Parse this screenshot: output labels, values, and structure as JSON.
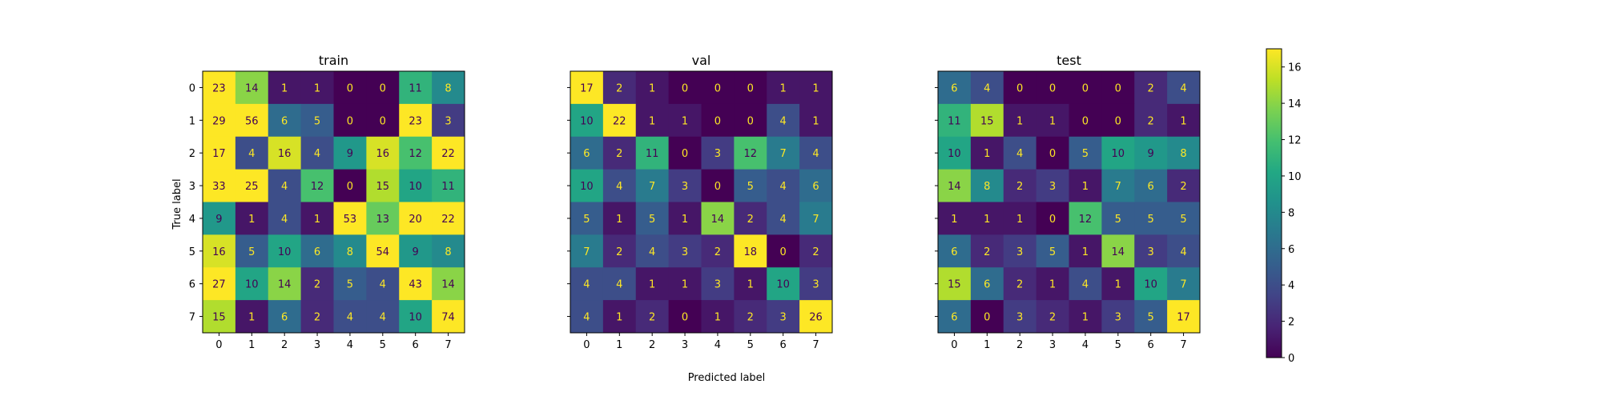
{
  "chart_data": {
    "type": "heatmap",
    "xlabel": "Predicted label",
    "ylabel": "True label",
    "tick_labels": [
      "0",
      "1",
      "2",
      "3",
      "4",
      "5",
      "6",
      "7"
    ],
    "color_range": [
      0,
      17
    ],
    "colormap": "viridis",
    "colorbar_ticks": [
      "0",
      "2",
      "4",
      "6",
      "8",
      "10",
      "12",
      "14",
      "16"
    ],
    "colorbar_tick_values": [
      0,
      2,
      4,
      6,
      8,
      10,
      12,
      14,
      16
    ],
    "text_colors": {
      "dark_cell": "#fde725",
      "light_cell": "#440154"
    },
    "panels": [
      {
        "title": "train",
        "matrix": [
          [
            23,
            14,
            1,
            1,
            0,
            0,
            11,
            8
          ],
          [
            29,
            56,
            6,
            5,
            0,
            0,
            23,
            3
          ],
          [
            17,
            4,
            16,
            4,
            9,
            16,
            12,
            22
          ],
          [
            33,
            25,
            4,
            12,
            0,
            15,
            10,
            11
          ],
          [
            9,
            1,
            4,
            1,
            53,
            13,
            20,
            22
          ],
          [
            16,
            5,
            10,
            6,
            8,
            54,
            9,
            8
          ],
          [
            27,
            10,
            14,
            2,
            5,
            4,
            43,
            14
          ],
          [
            15,
            1,
            6,
            2,
            4,
            4,
            10,
            74
          ]
        ]
      },
      {
        "title": "val",
        "matrix": [
          [
            17,
            2,
            1,
            0,
            0,
            0,
            1,
            1
          ],
          [
            10,
            22,
            1,
            1,
            0,
            0,
            4,
            1
          ],
          [
            6,
            2,
            11,
            0,
            3,
            12,
            7,
            4
          ],
          [
            10,
            4,
            7,
            3,
            0,
            5,
            4,
            6
          ],
          [
            5,
            1,
            5,
            1,
            14,
            2,
            4,
            7
          ],
          [
            7,
            2,
            4,
            3,
            2,
            18,
            0,
            2
          ],
          [
            4,
            4,
            1,
            1,
            3,
            1,
            10,
            3
          ],
          [
            4,
            1,
            2,
            0,
            1,
            2,
            3,
            26
          ]
        ]
      },
      {
        "title": "test",
        "matrix": [
          [
            6,
            4,
            0,
            0,
            0,
            0,
            2,
            4
          ],
          [
            11,
            15,
            1,
            1,
            0,
            0,
            2,
            1
          ],
          [
            10,
            1,
            4,
            0,
            5,
            10,
            9,
            8
          ],
          [
            14,
            8,
            2,
            3,
            1,
            7,
            6,
            2
          ],
          [
            1,
            1,
            1,
            0,
            12,
            5,
            5,
            5
          ],
          [
            6,
            2,
            3,
            5,
            1,
            14,
            3,
            4
          ],
          [
            15,
            6,
            2,
            1,
            4,
            1,
            10,
            7
          ],
          [
            6,
            0,
            3,
            2,
            1,
            3,
            5,
            17
          ]
        ]
      }
    ]
  }
}
